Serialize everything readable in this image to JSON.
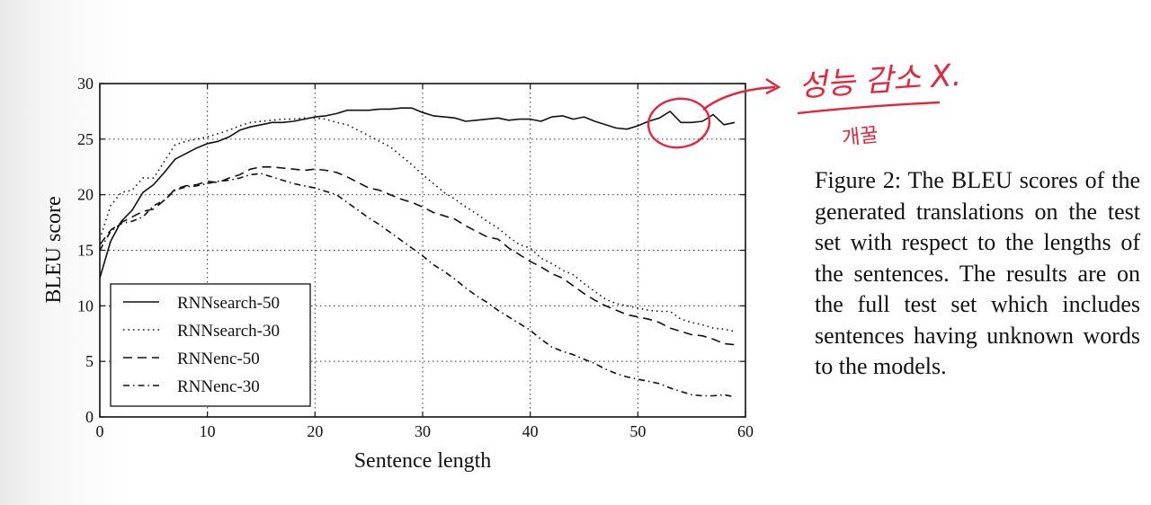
{
  "chart_data": {
    "type": "line",
    "xlabel": "Sentence length",
    "ylabel": "BLEU score",
    "xlim": [
      0,
      60
    ],
    "ylim": [
      0,
      30
    ],
    "xticks": [
      0,
      10,
      20,
      30,
      40,
      50,
      60
    ],
    "yticks": [
      0,
      5,
      10,
      15,
      20,
      25,
      30
    ],
    "grid": "dotted",
    "legend_position": "lower-left",
    "series": [
      {
        "name": "RNNsearch-50",
        "style": "solid",
        "x": [
          0,
          1,
          2,
          3,
          4,
          5,
          6,
          7,
          8,
          9,
          10,
          11,
          12,
          13,
          14,
          15,
          16,
          17,
          18,
          19,
          20,
          21,
          22,
          23,
          24,
          25,
          26,
          27,
          28,
          29,
          30,
          31,
          32,
          33,
          34,
          35,
          36,
          37,
          38,
          39,
          40,
          41,
          42,
          43,
          44,
          45,
          46,
          47,
          48,
          49,
          50,
          51,
          52,
          53,
          54,
          55,
          56,
          57,
          58,
          59
        ],
        "values": [
          12.5,
          15.8,
          17.6,
          18.6,
          20.2,
          20.9,
          22.0,
          23.2,
          23.7,
          24.2,
          24.6,
          24.8,
          25.2,
          25.8,
          26.1,
          26.3,
          26.5,
          26.5,
          26.6,
          26.8,
          27.0,
          27.1,
          27.3,
          27.6,
          27.6,
          27.6,
          27.7,
          27.7,
          27.8,
          27.8,
          27.4,
          27.1,
          27.0,
          26.9,
          26.6,
          26.7,
          26.8,
          26.9,
          26.7,
          26.8,
          26.8,
          26.6,
          27.0,
          27.1,
          26.8,
          27.0,
          26.6,
          26.3,
          26.0,
          25.9,
          26.2,
          26.6,
          26.9,
          27.5,
          26.5,
          26.5,
          26.6,
          27.2,
          26.3,
          26.5
        ]
      },
      {
        "name": "RNNsearch-30",
        "style": "dotted",
        "x": [
          0,
          1,
          2,
          3,
          4,
          5,
          6,
          7,
          8,
          9,
          10,
          11,
          12,
          13,
          14,
          15,
          16,
          17,
          18,
          19,
          20,
          21,
          22,
          23,
          24,
          25,
          26,
          27,
          28,
          29,
          30,
          31,
          32,
          33,
          34,
          35,
          36,
          37,
          38,
          39,
          40,
          41,
          42,
          43,
          44,
          45,
          46,
          47,
          48,
          49,
          50,
          51,
          52,
          53,
          54,
          55,
          56,
          57,
          58,
          59
        ],
        "values": [
          16.0,
          19.0,
          20.2,
          20.4,
          21.5,
          21.5,
          23.0,
          24.5,
          24.8,
          25.0,
          25.2,
          25.5,
          25.8,
          26.2,
          26.5,
          26.6,
          26.7,
          26.8,
          26.8,
          26.9,
          26.9,
          26.8,
          26.5,
          26.3,
          25.8,
          25.3,
          24.8,
          24.3,
          23.5,
          22.7,
          21.8,
          21.0,
          20.2,
          19.6,
          18.9,
          18.3,
          17.6,
          17.0,
          16.2,
          15.5,
          15.2,
          14.3,
          13.8,
          13.2,
          12.8,
          12.0,
          11.3,
          10.6,
          10.2,
          10.0,
          9.8,
          9.6,
          9.5,
          9.5,
          8.8,
          8.5,
          8.3,
          8.0,
          7.9,
          7.7
        ]
      },
      {
        "name": "RNNenc-50",
        "style": "dashed",
        "x": [
          0,
          1,
          2,
          3,
          4,
          5,
          6,
          7,
          8,
          9,
          10,
          11,
          12,
          13,
          14,
          15,
          16,
          17,
          18,
          19,
          20,
          21,
          22,
          23,
          24,
          25,
          26,
          27,
          28,
          29,
          30,
          31,
          32,
          33,
          34,
          35,
          36,
          37,
          38,
          39,
          40,
          41,
          42,
          43,
          44,
          45,
          46,
          47,
          48,
          49,
          50,
          51,
          52,
          53,
          54,
          55,
          56,
          57,
          58,
          59
        ],
        "values": [
          15.5,
          16.8,
          17.5,
          18.0,
          18.5,
          18.7,
          19.5,
          20.5,
          20.8,
          20.9,
          21.2,
          21.1,
          21.5,
          21.8,
          22.3,
          22.5,
          22.5,
          22.4,
          22.3,
          22.2,
          22.3,
          22.2,
          22.0,
          21.6,
          21.1,
          20.6,
          20.4,
          20.0,
          19.6,
          19.3,
          18.9,
          18.4,
          18.1,
          17.8,
          17.2,
          16.7,
          16.2,
          16.0,
          15.2,
          14.6,
          14.0,
          13.5,
          12.9,
          12.5,
          11.8,
          11.1,
          10.5,
          10.0,
          9.6,
          9.2,
          9.0,
          8.8,
          8.5,
          8.0,
          7.7,
          7.4,
          7.3,
          7.0,
          6.6,
          6.5
        ]
      },
      {
        "name": "RNNenc-30",
        "style": "dashdot",
        "x": [
          0,
          1,
          2,
          3,
          4,
          5,
          6,
          7,
          8,
          9,
          10,
          11,
          12,
          13,
          14,
          15,
          16,
          17,
          18,
          19,
          20,
          21,
          22,
          23,
          24,
          25,
          26,
          27,
          28,
          29,
          30,
          31,
          32,
          33,
          34,
          35,
          36,
          37,
          38,
          39,
          40,
          41,
          42,
          43,
          44,
          45,
          46,
          47,
          48,
          49,
          50,
          51,
          52,
          53,
          54,
          55,
          56,
          57,
          58,
          59
        ],
        "values": [
          15.0,
          16.7,
          17.4,
          17.6,
          18.0,
          19.0,
          19.5,
          20.4,
          20.7,
          20.8,
          21.0,
          21.2,
          21.3,
          21.5,
          21.8,
          21.9,
          21.6,
          21.3,
          21.0,
          20.8,
          20.6,
          20.3,
          20.0,
          19.3,
          18.6,
          17.9,
          17.3,
          16.6,
          15.9,
          15.2,
          14.5,
          13.7,
          13.1,
          12.4,
          11.6,
          10.9,
          10.3,
          9.6,
          9.0,
          8.4,
          7.8,
          7.0,
          6.3,
          5.9,
          5.6,
          5.2,
          4.8,
          4.3,
          3.9,
          3.6,
          3.4,
          3.2,
          3.0,
          2.6,
          2.3,
          2.0,
          1.9,
          1.9,
          2.0,
          1.8
        ]
      }
    ]
  },
  "caption": "Figure 2:  The BLEU scores of the generated translations on the test set with respect to the lengths of the sen­tences.  The results are on the full test set which in­cludes sentences having un­known words to the models.",
  "annotation": {
    "main_text": "성능 감소 X.",
    "sub_text": "개꿀",
    "color": "#e8243c"
  }
}
